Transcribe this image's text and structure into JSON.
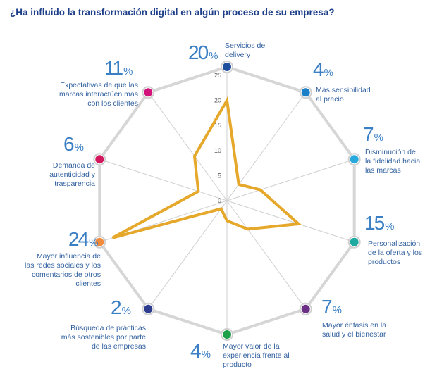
{
  "title": "¿Ha influido la transformación digital en algún proceso de su empresa?",
  "colors": {
    "title": "#1d3f8a",
    "frame": "#d6d6d6",
    "series": "#e5a82a",
    "text": "#2f5f9e",
    "pct": "#3a7fc4"
  },
  "chart_data": {
    "type": "radar",
    "title": "¿Ha influido la transformación digital en algún proceso de su empresa?",
    "rlim": [
      0,
      25
    ],
    "ticks": [
      "0",
      "5",
      "10",
      "15",
      "20",
      "25"
    ],
    "grid": true,
    "categories": [
      "Servicios de delivery",
      "Más sensibilidad al precio",
      "Disminución de la fidelidad hacia las marcas",
      "Personalización de la oferta y los productos",
      "Mayor énfasis en la salud y el bienestar",
      "Mayor valor de la experiencia frente al producto",
      "Búsqueda de prácticas más sostenibles por parte de las empresas",
      "Mayor influencia de las redes sociales y los comentarios de otros clientes",
      "Demanda de autenticidad y trasparencia",
      "Expectativas de que las marcas interactúen más con los clientes"
    ],
    "values": [
      20,
      4,
      7,
      15,
      7,
      4,
      2,
      24,
      6,
      11
    ],
    "percent_labels": [
      "20",
      "4",
      "7",
      "15",
      "7",
      "4",
      "2",
      "24",
      "6",
      "11"
    ],
    "percent_sign": "%",
    "label_lines": [
      [
        "Servicios de",
        "delivery"
      ],
      [
        "Más sensibilidad",
        "al precio"
      ],
      [
        "Disminución de",
        "la fidelidad hacia",
        "las marcas"
      ],
      [
        "Personalización",
        "de la oferta y los",
        "productos"
      ],
      [
        "Mayor énfasis en la",
        "salud y el bienestar"
      ],
      [
        "Mayor valor de la",
        "experiencia frente al",
        "producto"
      ],
      [
        "Búsqueda de prácticas",
        "más sostenibles por parte",
        "de las empresas"
      ],
      [
        "Mayor influencia de",
        "las redes sociales y los",
        "comentarios de otros",
        "clientes"
      ],
      [
        "Demanda de",
        "autenticidad y",
        "trasparencia"
      ],
      [
        "Expectativas de que las",
        "marcas interactúen más",
        "con los clientes"
      ]
    ],
    "marker_colors": [
      "#1f4e9c",
      "#1b7fc7",
      "#29a8dc",
      "#1eaaa0",
      "#6b2f86",
      "#1fa04a",
      "#2e3c8f",
      "#f08a3c",
      "#d3185f",
      "#d1137a"
    ]
  }
}
